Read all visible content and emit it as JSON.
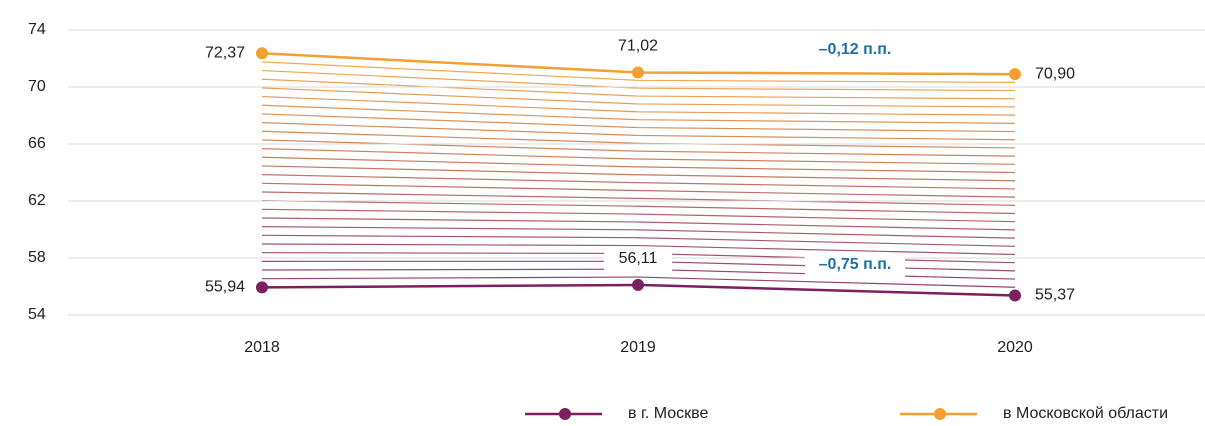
{
  "chart_data": {
    "type": "line",
    "categories": [
      "2018",
      "2019",
      "2020"
    ],
    "series": [
      {
        "name": "в г. Москве",
        "color": "#7b1f5e",
        "values": [
          55.94,
          56.11,
          55.37
        ],
        "value_labels": [
          "55,94",
          "56,11",
          "55,37"
        ]
      },
      {
        "name": "в Московской области",
        "color": "#f2a034",
        "values": [
          72.37,
          71.02,
          70.9
        ],
        "value_labels": [
          "72,37",
          "71,02",
          "70,90"
        ]
      }
    ],
    "annotations": [
      "–0,12 п.п.",
      "–0,75 п.п."
    ],
    "ylim": [
      54,
      74
    ],
    "yticks": [
      54,
      58,
      62,
      66,
      70,
      74
    ],
    "grid": true
  }
}
